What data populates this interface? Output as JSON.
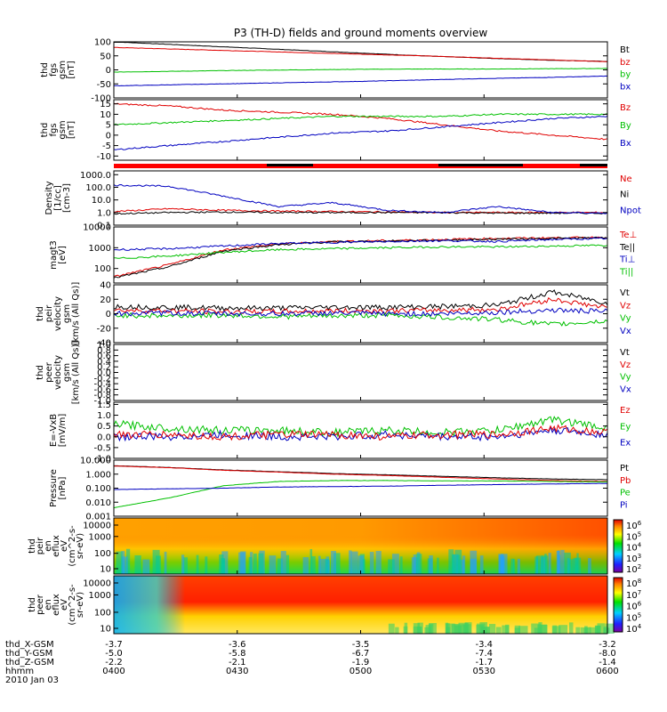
{
  "chart_data": {
    "type": "line",
    "title": "P3 (TH-D) fields and ground moments overview",
    "x_tick_labels": [
      "0400",
      "0430",
      "0500",
      "0530",
      "0600"
    ],
    "x_label_rows": [
      {
        "label": "thd_X-GSM",
        "values": [
          "-3.7",
          "-3.6",
          "-3.5",
          "-3.4",
          "-3.2"
        ]
      },
      {
        "label": "thd_Y-GSM",
        "values": [
          "-5.0",
          "-5.8",
          "-6.7",
          "-7.4",
          "-8.0"
        ]
      },
      {
        "label": "thd_Z-GSM",
        "values": [
          "-2.2",
          "-2.1",
          "-1.9",
          "-1.7",
          "-1.4"
        ]
      },
      {
        "label": "hhmm",
        "values": [
          "0400",
          "0430",
          "0500",
          "0530",
          "0600"
        ]
      }
    ],
    "date_label": "2010 Jan 03",
    "panels": [
      {
        "id": "fgs1",
        "ylabel_lines": [
          "thd",
          "fgs",
          "gsm",
          "[nT]"
        ],
        "ylim": [
          -100,
          100
        ],
        "yticks": [
          "100",
          "50",
          "0",
          "-50",
          "-100"
        ],
        "legend": [
          {
            "name": "Bt",
            "color": "#000000"
          },
          {
            "name": "bz",
            "color": "#e00000"
          },
          {
            "name": "by",
            "color": "#00c000"
          },
          {
            "name": "bx",
            "color": "#0000c0"
          }
        ],
        "series": [
          {
            "name": "Bt",
            "color": "#000000",
            "values": [
              100,
              90,
              80,
              70,
              60,
              50,
              42,
              35,
              30
            ]
          },
          {
            "name": "bz",
            "color": "#e00000",
            "values": [
              80,
              74,
              68,
              62,
              56,
              50,
              43,
              36,
              29
            ]
          },
          {
            "name": "by",
            "color": "#00c000",
            "values": [
              -8,
              -5,
              -2,
              0,
              2,
              3,
              3,
              4,
              5
            ]
          },
          {
            "name": "bx",
            "color": "#0000c0",
            "values": [
              -57,
              -53,
              -49,
              -45,
              -41,
              -36,
              -31,
              -27,
              -22
            ]
          }
        ]
      },
      {
        "id": "fgs2",
        "ylabel_lines": [
          "thd",
          "fgs",
          "gsm",
          "[nT]"
        ],
        "ylim": [
          -12,
          17
        ],
        "yticks": [
          "15",
          "10",
          "5",
          "0",
          "-5",
          "-10"
        ],
        "legend": [
          {
            "name": "Bz",
            "color": "#e00000"
          },
          {
            "name": "By",
            "color": "#00c000"
          },
          {
            "name": "Bx",
            "color": "#0000c0"
          }
        ],
        "series": [
          {
            "name": "Bz",
            "color": "#e00000",
            "values": [
              15,
              14,
              12,
              11,
              10,
              8,
              5,
              2,
              0,
              -2
            ]
          },
          {
            "name": "By",
            "color": "#00c000",
            "values": [
              5,
              6,
              7,
              8,
              9,
              9,
              9,
              10,
              10,
              10
            ]
          },
          {
            "name": "Bx",
            "color": "#0000c0",
            "values": [
              -7,
              -5,
              -3,
              -1,
              1,
              2,
              4,
              6,
              8,
              9
            ]
          }
        ]
      },
      {
        "id": "density",
        "ylabel_lines": [
          "Density",
          "[1/cc]",
          "[cm-3]"
        ],
        "yscale": "log",
        "ylim": [
          0.1,
          2000
        ],
        "yticks": [
          "1000.0",
          "100.0",
          "10.0",
          "1.0",
          "0.1"
        ],
        "legend": [
          {
            "name": "Ne",
            "color": "#e00000"
          },
          {
            "name": "Ni",
            "color": "#000000"
          },
          {
            "name": "Npot",
            "color": "#0000c0"
          }
        ],
        "series": [
          {
            "name": "Ne",
            "color": "#e00000",
            "values": [
              1.2,
              2.0,
              1.5,
              1.3,
              1.2,
              1.1,
              1.0,
              1.0,
              1.0,
              1.0
            ]
          },
          {
            "name": "Ni",
            "color": "#000000",
            "values": [
              0.8,
              1.0,
              1.1,
              1.0,
              1.0,
              1.0,
              1.0,
              0.9,
              0.9,
              0.9
            ]
          },
          {
            "name": "Npot",
            "color": "#0000c0",
            "values": [
              150,
              120,
              20,
              3,
              6,
              1.5,
              1.0,
              3,
              1.0,
              0.9
            ]
          }
        ]
      },
      {
        "id": "temp",
        "ylabel_lines": [
          "magt3",
          "[eV]"
        ],
        "yscale": "log",
        "ylim": [
          20,
          10000
        ],
        "yticks": [
          "10000",
          "1000",
          "100"
        ],
        "legend": [
          {
            "name": "Te⊥",
            "color": "#e00000"
          },
          {
            "name": "Te||",
            "color": "#000000"
          },
          {
            "name": "Ti⊥",
            "color": "#0000c0"
          },
          {
            "name": "Ti||",
            "color": "#00c000"
          }
        ],
        "series": [
          {
            "name": "Te⊥",
            "color": "#e00000",
            "values": [
              40,
              150,
              800,
              1500,
              2000,
              2200,
              2500,
              2800,
              3000,
              3200
            ]
          },
          {
            "name": "Te||",
            "color": "#000000",
            "values": [
              35,
              120,
              700,
              1400,
              1900,
              2100,
              2300,
              2600,
              2800,
              3000
            ]
          },
          {
            "name": "Ti⊥",
            "color": "#0000c0",
            "values": [
              800,
              900,
              1200,
              1600,
              1800,
              2000,
              2200,
              2000,
              2500,
              2800
            ]
          },
          {
            "name": "Ti||",
            "color": "#00c000",
            "values": [
              300,
              400,
              600,
              800,
              900,
              1000,
              1100,
              1100,
              1200,
              1300
            ]
          }
        ]
      },
      {
        "id": "vel_peir",
        "ylabel_lines": [
          "thd",
          "peir",
          "velocity",
          "gsm",
          "[km/s (All Qs)]"
        ],
        "ylim": [
          -40,
          40
        ],
        "yticks": [
          "40",
          "20",
          "0",
          "-20",
          "-40"
        ],
        "legend": [
          {
            "name": "Vt",
            "color": "#000000"
          },
          {
            "name": "Vz",
            "color": "#e00000"
          },
          {
            "name": "Vy",
            "color": "#00c000"
          },
          {
            "name": "Vx",
            "color": "#0000c0"
          }
        ],
        "series": [
          {
            "name": "Vt",
            "color": "#000000",
            "values": [
              10,
              9,
              8,
              8,
              9,
              9,
              10,
              12,
              30,
              15
            ]
          },
          {
            "name": "Vz",
            "color": "#e00000",
            "values": [
              5,
              4,
              3,
              3,
              4,
              4,
              5,
              6,
              20,
              8
            ]
          },
          {
            "name": "Vy",
            "color": "#00c000",
            "values": [
              -2,
              -3,
              -2,
              -4,
              -3,
              -2,
              -5,
              -8,
              -15,
              -10
            ]
          },
          {
            "name": "Vx",
            "color": "#0000c0",
            "values": [
              0,
              1,
              0,
              0,
              1,
              0,
              0,
              2,
              5,
              3
            ]
          }
        ]
      },
      {
        "id": "vel_peer",
        "ylabel_lines": [
          "thd",
          "peer",
          "velocity",
          "gsm",
          "[km/s (All Qs)]"
        ],
        "ylim": [
          -1.0,
          1.0
        ],
        "yticks": [
          "1.0",
          "0.8",
          "0.6",
          "0.4",
          "0.2",
          "0.0",
          "-0.2",
          "-0.4",
          "-0.6",
          "-0.8",
          "-1.0"
        ],
        "legend": [
          {
            "name": "Vt",
            "color": "#000000"
          },
          {
            "name": "Vz",
            "color": "#e00000"
          },
          {
            "name": "Vy",
            "color": "#00c000"
          },
          {
            "name": "Vx",
            "color": "#0000c0"
          }
        ],
        "series": []
      },
      {
        "id": "efield",
        "ylabel_lines": [
          "E=-VxB",
          "[mV/m]"
        ],
        "ylim": [
          -1.0,
          1.6
        ],
        "yticks": [
          "1.5",
          "1.0",
          "0.5",
          "0.0",
          "-0.5",
          "-1.0"
        ],
        "legend": [
          {
            "name": "Ez",
            "color": "#e00000"
          },
          {
            "name": "Ey",
            "color": "#00c000"
          },
          {
            "name": "Ex",
            "color": "#0000c0"
          }
        ],
        "series": [
          {
            "name": "Ey",
            "color": "#00c000",
            "values": [
              0.6,
              0.4,
              0.3,
              0.3,
              0.2,
              0.3,
              0.2,
              0.3,
              0.8,
              0.4
            ]
          },
          {
            "name": "Ex",
            "color": "#0000c0",
            "values": [
              0.0,
              0.0,
              0.1,
              0.0,
              0.0,
              0.1,
              0.0,
              0.0,
              0.3,
              0.1
            ]
          },
          {
            "name": "Ez",
            "color": "#e00000",
            "values": [
              0.1,
              0.1,
              0.0,
              0.1,
              0.1,
              0.0,
              0.1,
              0.1,
              0.4,
              0.2
            ]
          }
        ]
      },
      {
        "id": "pressure",
        "ylabel_lines": [
          "Pressure",
          "[nPa]"
        ],
        "yscale": "log",
        "ylim": [
          0.001,
          10
        ],
        "yticks": [
          "10.000",
          "1.000",
          "0.100",
          "0.010",
          "0.001"
        ],
        "legend": [
          {
            "name": "Pt",
            "color": "#000000"
          },
          {
            "name": "Pb",
            "color": "#e00000"
          },
          {
            "name": "Pe",
            "color": "#00c000"
          },
          {
            "name": "Pi",
            "color": "#0000c0"
          }
        ],
        "series": [
          {
            "name": "Pt",
            "color": "#000000",
            "values": [
              4.0,
              3.0,
              2.0,
              1.5,
              1.1,
              0.9,
              0.7,
              0.55,
              0.45,
              0.4
            ]
          },
          {
            "name": "Pb",
            "color": "#e00000",
            "values": [
              3.8,
              2.9,
              1.9,
              1.4,
              1.0,
              0.8,
              0.6,
              0.45,
              0.35,
              0.3
            ]
          },
          {
            "name": "Pe",
            "color": "#00c000",
            "values": [
              0.004,
              0.02,
              0.15,
              0.3,
              0.35,
              0.35,
              0.33,
              0.33,
              0.3,
              0.28
            ]
          },
          {
            "name": "Pi",
            "color": "#0000c0",
            "values": [
              0.08,
              0.09,
              0.1,
              0.12,
              0.13,
              0.14,
              0.16,
              0.18,
              0.2,
              0.22
            ]
          }
        ]
      }
    ],
    "spectrograms": [
      {
        "id": "peir",
        "ylabel_lines": [
          "thd",
          "peir",
          "en",
          "eflux",
          "eV",
          "(cm^2-s-",
          "sr-eV)"
        ],
        "yticks": [
          "10000",
          "1000",
          "100",
          "10"
        ],
        "colorbar_ticks": [
          "10^6",
          "10^5",
          "10^4",
          "10^3",
          "10^2"
        ]
      },
      {
        "id": "peer",
        "ylabel_lines": [
          "thd",
          "peer",
          "en",
          "eflux",
          "eV",
          "(cm^2-s-",
          "sr-eV)"
        ],
        "yticks": [
          "10000",
          "1000",
          "100",
          "10"
        ],
        "colorbar_ticks": [
          "10^8",
          "10^7",
          "10^6",
          "10^5",
          "10^4"
        ]
      }
    ]
  }
}
